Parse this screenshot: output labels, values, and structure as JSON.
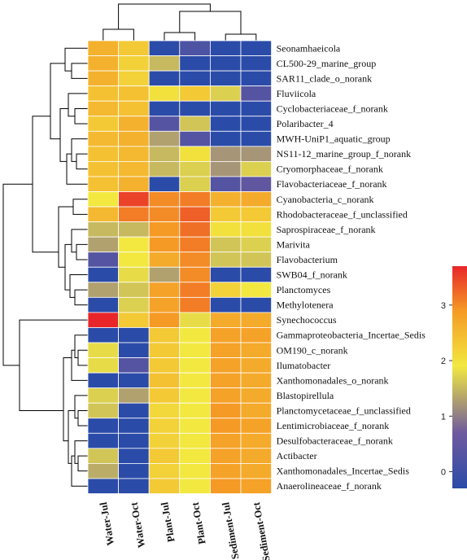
{
  "chart_data": {
    "type": "heatmap",
    "columns": [
      "Water-Jul",
      "Water-Oct",
      "Plant-Jul",
      "Plant-Oct",
      "Sediment-Jul",
      "Sediment-Oct"
    ],
    "rows": [
      "Seonamhaeicola",
      "CL500-29_marine_group",
      "SAR11_clade_o_norank",
      "Fluviicola",
      "Cyclobacteriaceae_f_norank",
      "Polaribacter_4",
      "MWH-UniP1_aquatic_group",
      "NS11-12_marine_group_f_norank",
      "Cryomorphaceae_f_norank",
      "Flavobacteriaceae_f_norank",
      "Cyanobacteria_c_norank",
      "Rhodobacteraceae_f_unclassified",
      "Saprospiraceae_f_norank",
      "Marivita",
      "Flavobacterium",
      "SWB04_f_norank",
      "Planctomyces",
      "Methylotenera",
      "Synechococcus",
      "Gammaproteobacteria_Incertae_Sedis",
      "OM190_c_norank",
      "Ilumatobacter",
      "Xanthomonadales_o_norank",
      "Blastopirellula",
      "Planctomycetaceae_f_unclassified",
      "Lentimicrobiaceae_f_norank",
      "Desulfobacteraceae_f_norank",
      "Actibacter",
      "Xanthomonadales_Incertae_Sedis",
      "Anaerolineaceae_f_norank"
    ],
    "values": [
      [
        2.6,
        2.3,
        -0.3,
        0.2,
        -0.3,
        -0.3
      ],
      [
        2.6,
        2.2,
        1.5,
        -0.3,
        -0.3,
        -0.3
      ],
      [
        2.6,
        2.2,
        -0.3,
        -0.3,
        -0.3,
        -0.3
      ],
      [
        2.4,
        2.4,
        2.0,
        2.3,
        1.7,
        0.3
      ],
      [
        2.5,
        2.4,
        -0.3,
        -0.3,
        -0.3,
        -0.3
      ],
      [
        2.3,
        2.6,
        0.3,
        1.6,
        -0.3,
        -0.3
      ],
      [
        2.5,
        2.6,
        1.3,
        0.3,
        -0.3,
        -0.3
      ],
      [
        2.4,
        2.5,
        1.5,
        2.0,
        1.2,
        1.2
      ],
      [
        2.4,
        2.5,
        1.5,
        1.7,
        1.2,
        1.7
      ],
      [
        2.4,
        2.6,
        -0.3,
        1.7,
        0.3,
        0.5
      ],
      [
        1.9,
        3.5,
        3.0,
        3.1,
        2.6,
        2.7
      ],
      [
        2.5,
        3.1,
        3.0,
        3.3,
        2.3,
        2.3
      ],
      [
        1.5,
        1.5,
        2.9,
        3.2,
        2.0,
        2.0
      ],
      [
        1.3,
        1.9,
        2.9,
        3.1,
        1.6,
        1.7
      ],
      [
        0.3,
        1.9,
        2.7,
        3.0,
        1.6,
        1.6
      ],
      [
        -0.3,
        1.8,
        1.3,
        3.0,
        -0.3,
        -0.3
      ],
      [
        1.3,
        1.6,
        2.8,
        3.1,
        2.2,
        1.9
      ],
      [
        -0.3,
        1.7,
        2.8,
        3.1,
        -0.3,
        -0.3
      ],
      [
        3.7,
        2.3,
        2.9,
        1.8,
        2.7,
        2.7
      ],
      [
        -0.3,
        -0.3,
        2.3,
        1.9,
        2.8,
        2.8
      ],
      [
        1.8,
        -0.3,
        2.3,
        1.9,
        2.8,
        2.7
      ],
      [
        1.8,
        0.3,
        2.3,
        1.9,
        2.8,
        2.7
      ],
      [
        -0.3,
        -0.3,
        2.4,
        1.9,
        2.8,
        2.7
      ],
      [
        1.7,
        1.3,
        2.3,
        1.9,
        2.8,
        2.7
      ],
      [
        1.6,
        -0.3,
        2.1,
        1.9,
        2.9,
        2.7
      ],
      [
        -0.3,
        -0.3,
        2.2,
        1.9,
        2.9,
        2.8
      ],
      [
        -0.3,
        -0.3,
        2.2,
        1.9,
        2.8,
        2.7
      ],
      [
        1.6,
        -0.3,
        2.3,
        1.9,
        2.8,
        2.7
      ],
      [
        1.4,
        -0.3,
        2.2,
        1.9,
        2.8,
        2.7
      ],
      [
        -0.3,
        -0.3,
        2.3,
        1.9,
        2.9,
        2.8
      ]
    ],
    "scale": {
      "min": -0.3,
      "max": 3.7,
      "ticks": [
        0,
        1,
        2,
        3
      ]
    },
    "colors": {
      "low": "#2b4ba8",
      "mid_low": "#6f5a9e",
      "mid": "#f2e840",
      "mid_high": "#f59a25",
      "high": "#e8262a"
    },
    "legend_position": "right",
    "column_dendrogram": true,
    "row_dendrogram": true
  }
}
